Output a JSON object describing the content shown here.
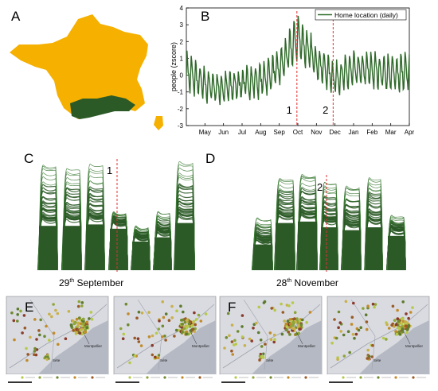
{
  "panels": {
    "A": {
      "letter": "A"
    },
    "B": {
      "letter": "B",
      "legend": "Home location (daily)",
      "ylabel": "people (zscore)",
      "marker1": "1",
      "marker2": "2"
    },
    "C": {
      "letter": "C",
      "marker": "1",
      "date_num": "29",
      "date_sup": "th",
      "date_rest": "  September"
    },
    "D": {
      "letter": "D",
      "marker": "2",
      "date_num": "28",
      "date_sup": "th",
      "date_rest": " November"
    },
    "E": {
      "letter": "E",
      "city1": "Montpellier",
      "city2": "Sète"
    },
    "F": {
      "letter": "F",
      "city1": "Montpellier",
      "city2": "Sète"
    }
  },
  "colors": {
    "france": "#f5b000",
    "region": "#2c5a27",
    "line": "#2f6a2a",
    "marker": "#e0302f",
    "map_bg": "#d9dbe0",
    "sea": "#b5b9c4"
  },
  "chart_data": {
    "type": "line",
    "xlabel": "",
    "ylabel": "people (zscore)",
    "ylim": [
      -3,
      4
    ],
    "yticks": [
      -3,
      -2,
      -1,
      0,
      1,
      2,
      3,
      4
    ],
    "categories": [
      "May",
      "Jun",
      "Jul",
      "Aug",
      "Sep",
      "Oct",
      "Nov",
      "Dec",
      "Jan",
      "Feb",
      "Mar",
      "Apr"
    ],
    "series": [
      {
        "name": "Home location (daily)",
        "x": [
          "Apr",
          "May",
          "Jun",
          "Jul",
          "Aug",
          "Sep",
          "Oct",
          "Nov",
          "Dec",
          "Jan",
          "Feb",
          "Mar",
          "Apr"
        ],
        "values": [
          0.2,
          -0.6,
          -0.8,
          -0.5,
          -0.3,
          0.4,
          2.3,
          0.8,
          -0.2,
          0.3,
          0.3,
          0.1,
          0.2
        ],
        "amplitude": [
          1.3,
          1.1,
          1.0,
          1.0,
          1.1,
          1.2,
          1.5,
          1.2,
          1.0,
          1.2,
          1.2,
          1.2,
          1.3
        ]
      }
    ],
    "annotations": [
      {
        "label": "1",
        "x": "Sep 29"
      },
      {
        "label": "2",
        "x": "Nov 28"
      }
    ]
  }
}
